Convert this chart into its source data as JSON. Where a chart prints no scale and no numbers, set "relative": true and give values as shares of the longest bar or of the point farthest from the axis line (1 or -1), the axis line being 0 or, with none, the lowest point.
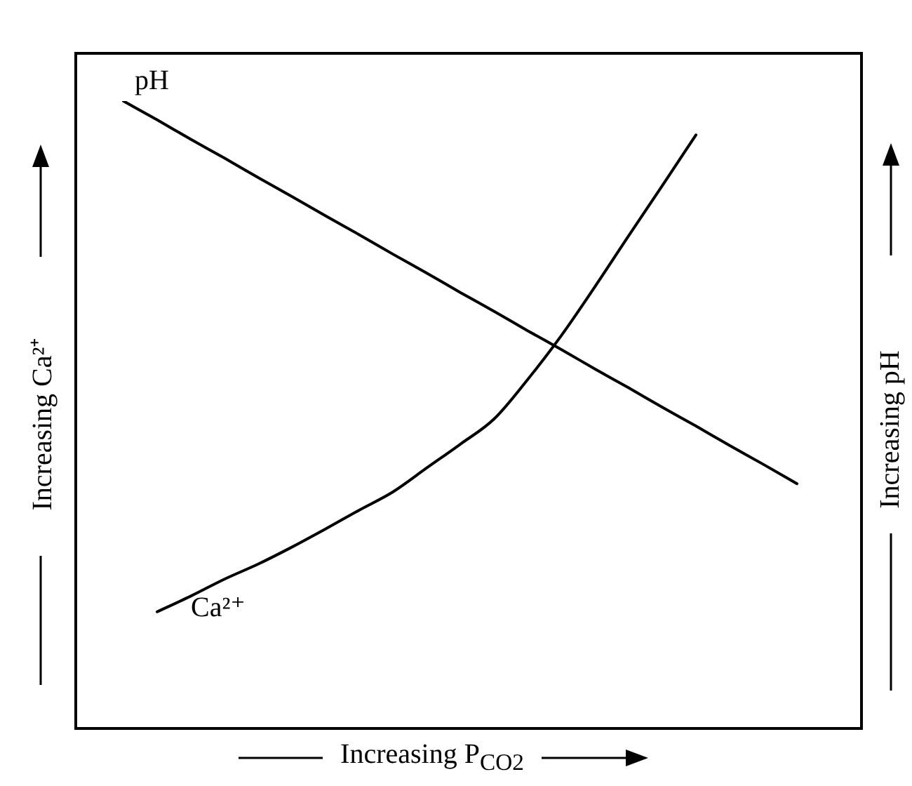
{
  "chart_data": {
    "type": "line",
    "relative": true,
    "xlabel": "Increasing P$_{CO2}$",
    "ylabel": "Increasing Ca²⁺",
    "y2label": "Increasing pH",
    "grid": false,
    "legend": false,
    "marker": "none",
    "line_style": "solid",
    "categories": [
      null,
      null,
      null,
      null,
      null,
      null,
      null,
      null,
      null,
      null,
      null,
      null,
      null,
      null,
      null,
      null,
      null,
      null,
      null,
      null,
      null
    ],
    "series": [
      {
        "name": "pH",
        "color": "#000000",
        "values": [
          1.0,
          0.97,
          0.939,
          0.909,
          0.878,
          0.848,
          0.817,
          0.787,
          0.756,
          0.726,
          0.695,
          0.665,
          0.634,
          0.604,
          0.573,
          0.543,
          0.512,
          0.482,
          0.451,
          0.421,
          0.39
        ]
      },
      {
        "name": "Ca²⁺",
        "color": "#000000",
        "values": [
          null,
          0.186,
          0.211,
          0.238,
          0.262,
          0.289,
          0.318,
          0.348,
          0.377,
          0.415,
          0.453,
          0.493,
          0.556,
          0.626,
          0.704,
          0.785,
          0.865,
          0.946,
          null,
          null,
          null
        ]
      }
    ]
  }
}
